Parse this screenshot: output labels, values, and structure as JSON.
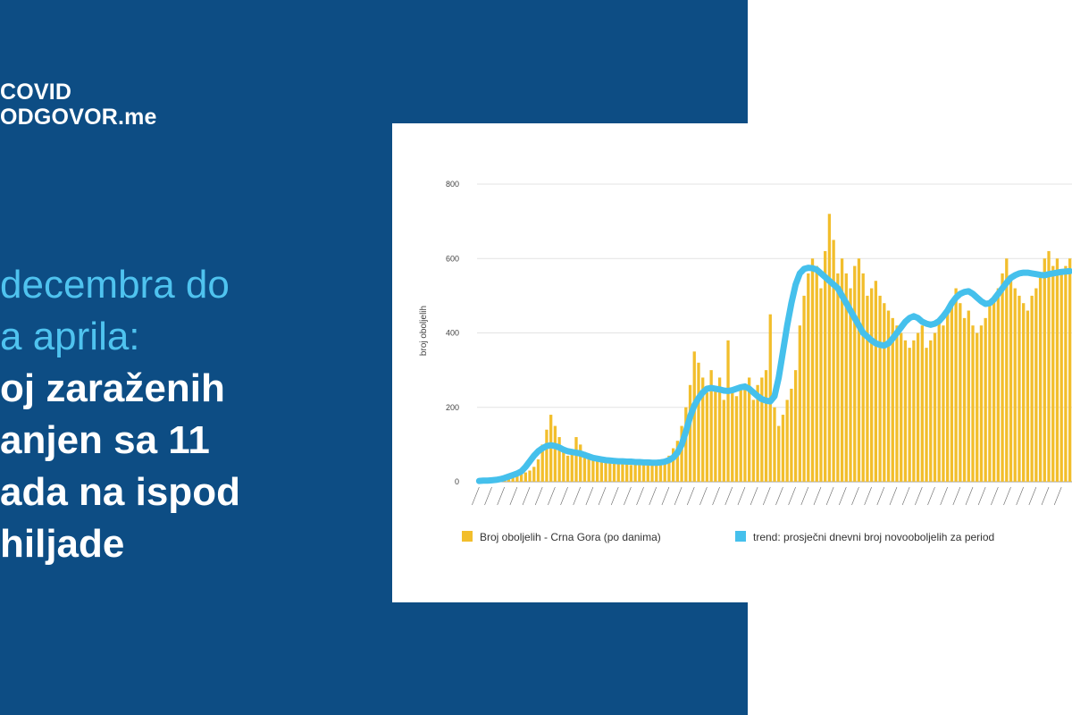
{
  "logo": {
    "line1": "COVID",
    "line2": "ODGOVOR",
    "line2_suffix": ".me"
  },
  "headline": {
    "line1": "decembra do",
    "line2": "a aprila:",
    "line3": "oj zaraženih",
    "line4": "anjen sa 11",
    "line5": "ada na ispod",
    "line6": "hiljade"
  },
  "colors": {
    "panel": "#0d4d84",
    "accent": "#4fc3ef",
    "bars": "#f2be2c",
    "trend": "#45c0ec"
  },
  "chart_data": {
    "type": "bar",
    "ylabel": "broj oboljelih",
    "ylim": [
      0,
      800
    ],
    "yticks": [
      0,
      200,
      400,
      600,
      800
    ],
    "grid": true,
    "legend_position": "bottom",
    "series": [
      {
        "name": "Broj oboljelih - Crna Gora (po danima)",
        "type": "bar",
        "values": [
          2,
          3,
          2,
          5,
          3,
          6,
          8,
          10,
          12,
          15,
          20,
          25,
          30,
          40,
          60,
          100,
          140,
          180,
          150,
          120,
          90,
          70,
          80,
          120,
          100,
          80,
          70,
          60,
          60,
          55,
          60,
          50,
          55,
          50,
          55,
          60,
          45,
          50,
          55,
          50,
          50,
          45,
          55,
          50,
          60,
          70,
          90,
          110,
          150,
          200,
          260,
          350,
          320,
          280,
          240,
          300,
          250,
          280,
          220,
          380,
          240,
          230,
          250,
          260,
          280,
          220,
          260,
          280,
          300,
          450,
          200,
          150,
          180,
          220,
          250,
          300,
          420,
          500,
          560,
          600,
          580,
          520,
          620,
          720,
          650,
          560,
          600,
          560,
          520,
          580,
          600,
          560,
          500,
          520,
          540,
          500,
          480,
          460,
          440,
          420,
          400,
          380,
          360,
          380,
          400,
          420,
          360,
          380,
          400,
          440,
          420,
          460,
          480,
          520,
          480,
          440,
          460,
          420,
          400,
          420,
          440,
          480,
          500,
          520,
          560,
          600,
          540,
          520,
          500,
          480,
          460,
          500,
          520,
          560,
          600,
          620,
          580,
          600,
          560,
          580,
          600
        ],
        "color": "#f2be2c"
      },
      {
        "name": "trend: prosječni dnevni broj novooboljelih za period",
        "type": "line",
        "values": [
          2,
          3,
          3,
          4,
          5,
          7,
          10,
          14,
          18,
          22,
          28,
          40,
          55,
          70,
          82,
          90,
          96,
          98,
          96,
          92,
          86,
          82,
          80,
          78,
          76,
          72,
          68,
          64,
          62,
          60,
          58,
          57,
          56,
          55,
          55,
          54,
          54,
          53,
          53,
          52,
          52,
          51,
          51,
          52,
          54,
          58,
          65,
          78,
          100,
          135,
          175,
          205,
          225,
          240,
          250,
          252,
          250,
          248,
          245,
          244,
          246,
          250,
          254,
          256,
          250,
          240,
          230,
          222,
          218,
          216,
          230,
          280,
          350,
          420,
          480,
          530,
          560,
          572,
          575,
          574,
          570,
          560,
          550,
          540,
          530,
          520,
          500,
          480,
          460,
          440,
          420,
          400,
          390,
          380,
          372,
          368,
          366,
          372,
          385,
          400,
          415,
          430,
          440,
          445,
          440,
          430,
          425,
          422,
          425,
          432,
          445,
          460,
          480,
          495,
          505,
          510,
          512,
          505,
          495,
          485,
          478,
          480,
          490,
          505,
          520,
          535,
          548,
          555,
          560,
          562,
          562,
          560,
          558,
          556,
          555,
          558,
          560,
          562,
          564,
          565,
          566
        ],
        "color": "#45c0ec"
      }
    ]
  }
}
